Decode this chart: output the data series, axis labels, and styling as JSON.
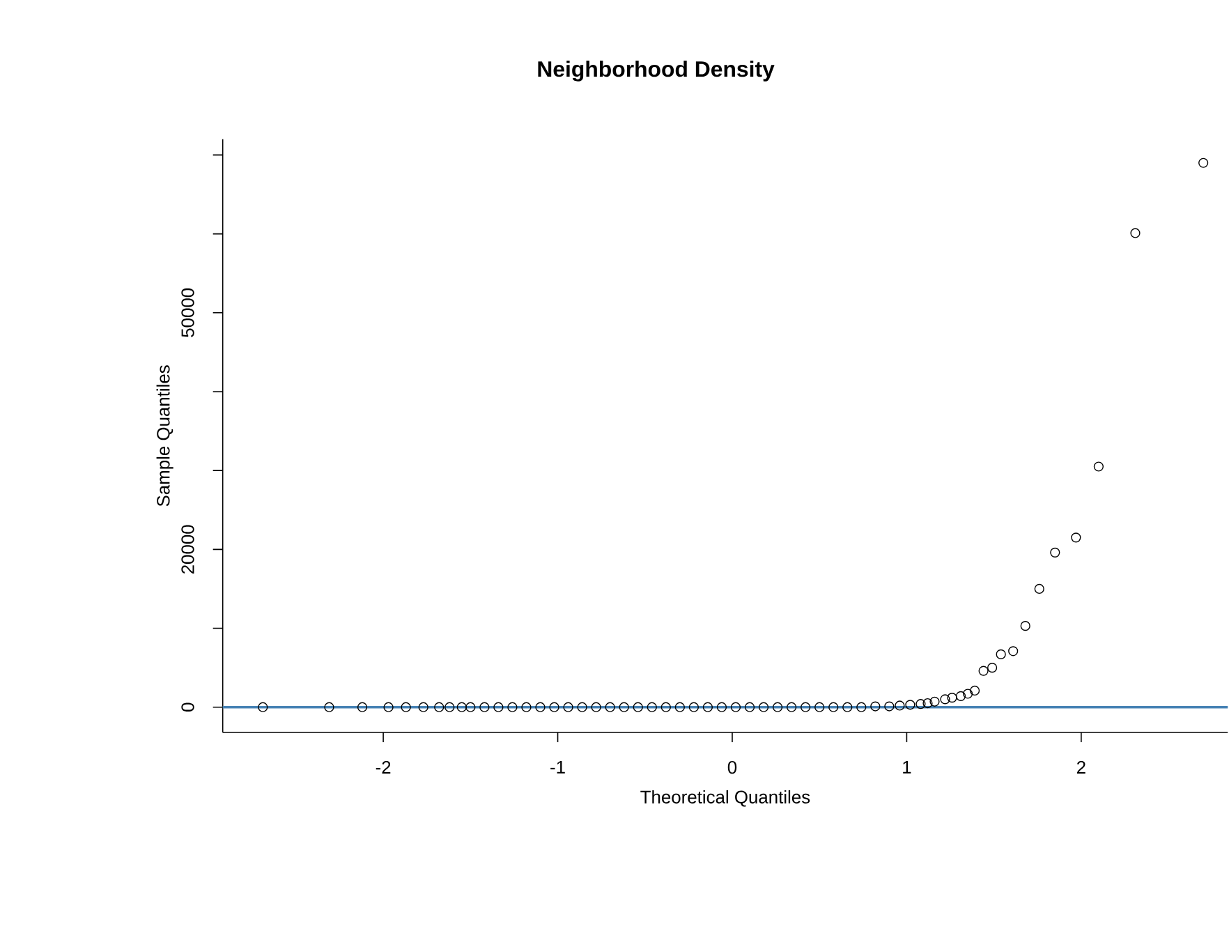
{
  "chart_data": {
    "type": "scatter",
    "title": "Neighborhood Density",
    "xlabel": "Theoretical Quantiles",
    "ylabel": "Sample Quantiles",
    "x": [
      -2.69,
      -2.31,
      -2.12,
      -1.97,
      -1.87,
      -1.77,
      -1.68,
      -1.62,
      -1.55,
      -1.5,
      -1.42,
      -1.34,
      -1.26,
      -1.18,
      -1.1,
      -1.02,
      -0.94,
      -0.86,
      -0.78,
      -0.7,
      -0.62,
      -0.54,
      -0.46,
      -0.38,
      -0.3,
      -0.22,
      -0.14,
      -0.06,
      0.02,
      0.1,
      0.18,
      0.26,
      0.34,
      0.42,
      0.5,
      0.58,
      0.66,
      0.74,
      0.82,
      0.9,
      0.96,
      1.02,
      1.08,
      1.12,
      1.16,
      1.22,
      1.26,
      1.31,
      1.35,
      1.39,
      1.44,
      1.49,
      1.54,
      1.61,
      1.68,
      1.76,
      1.85,
      1.97,
      2.1,
      2.31,
      2.7
    ],
    "values": [
      0,
      0,
      0,
      0,
      0,
      0,
      0,
      0,
      0,
      0,
      0,
      0,
      0,
      0,
      0,
      0,
      0,
      0,
      0,
      0,
      0,
      0,
      0,
      0,
      0,
      0,
      0,
      0,
      0,
      0,
      0,
      0,
      0,
      0,
      0,
      0,
      0,
      0,
      100,
      100,
      200,
      300,
      400,
      500,
      700,
      1000,
      1200,
      1400,
      1700,
      2100,
      4600,
      5000,
      6700,
      7100,
      10300,
      15000,
      19600,
      21500,
      30500,
      60100,
      69000
    ],
    "color": "#000000",
    "marker": "circle",
    "ref_lines": [
      {
        "axis": "y",
        "value": 0,
        "color": "#4682b4"
      }
    ],
    "xlim": [
      -2.92,
      2.84
    ],
    "ylim": [
      -3200,
      72000
    ],
    "xticks": [
      -2,
      -1,
      0,
      1,
      2
    ],
    "yticks": [
      0,
      {
        "value": 10000,
        "label": null
      },
      20000,
      {
        "value": 30000,
        "label": null
      },
      {
        "value": 40000,
        "label": null
      },
      50000,
      {
        "value": 60000,
        "label": null
      },
      {
        "value": 70000,
        "label": null
      }
    ]
  }
}
